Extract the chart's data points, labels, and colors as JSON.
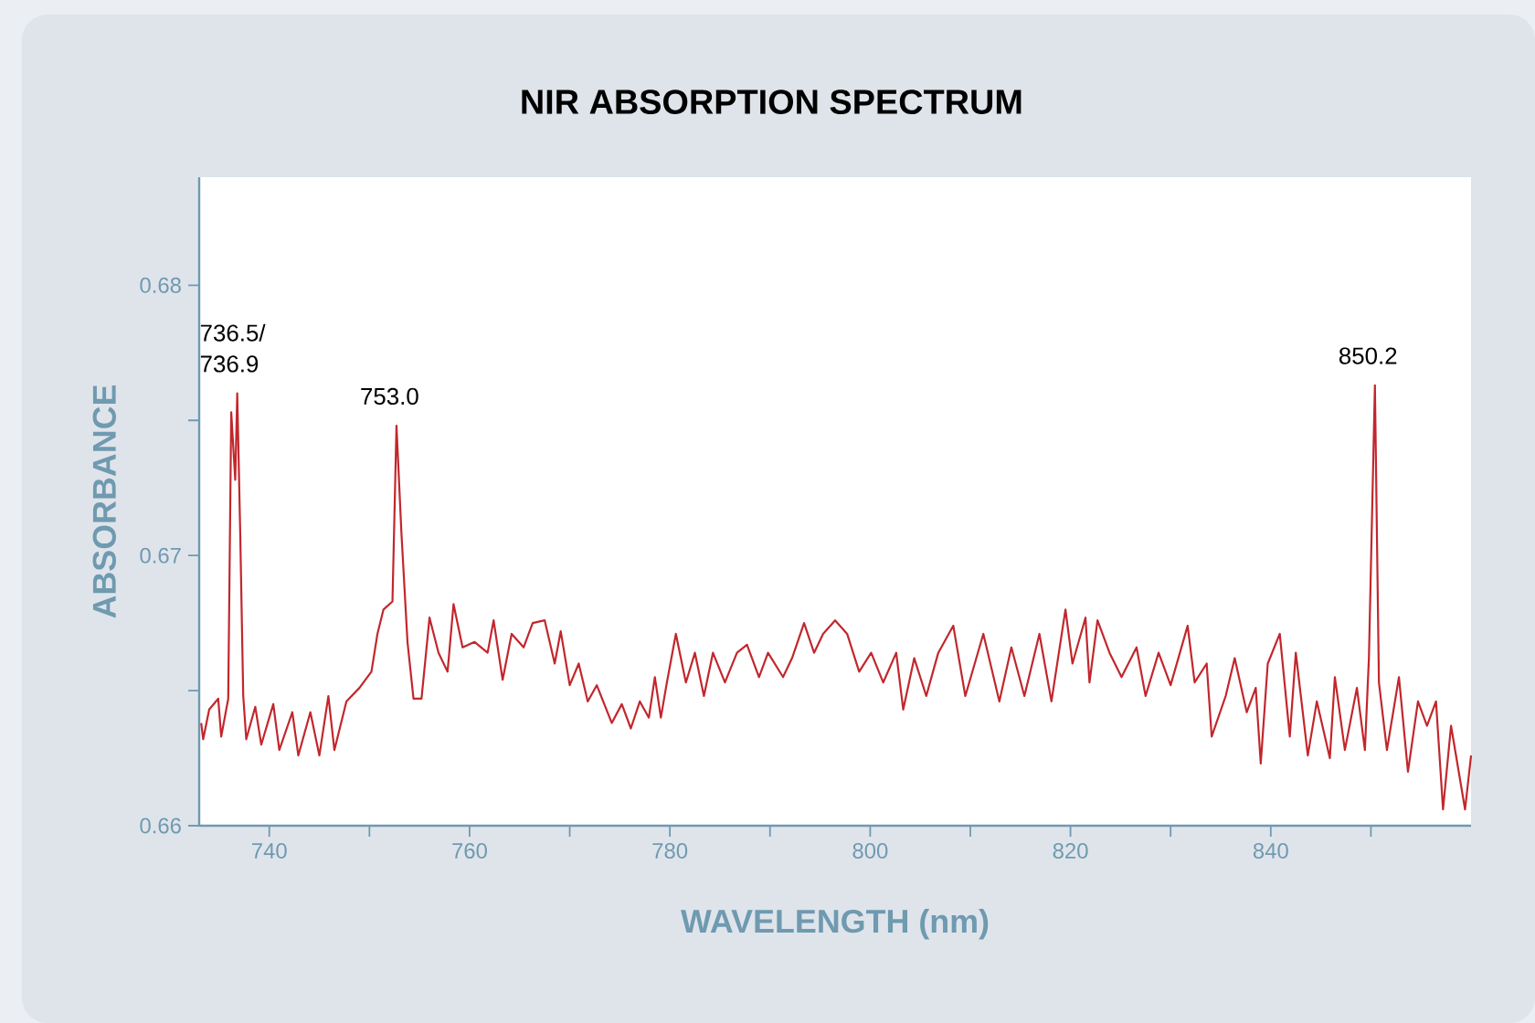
{
  "chart_data": {
    "type": "line",
    "title": "NIR ABSORPTION SPECTRUM",
    "xlabel": "WAVELENGTH (nm)",
    "ylabel": "ABSORBANCE",
    "color": "#c1272d",
    "xlim": [
      733,
      860
    ],
    "ylim": [
      0.66,
      0.684
    ],
    "xticks": [
      740,
      {
        "value": 750,
        "label": null
      },
      760,
      {
        "value": 770,
        "label": null
      },
      780,
      {
        "value": 790,
        "label": null
      },
      800,
      {
        "value": 810,
        "label": null
      },
      820,
      {
        "value": 830,
        "label": null
      },
      840,
      {
        "value": 850,
        "label": null
      }
    ],
    "yticks": [
      0.66,
      {
        "value": 0.665,
        "label": null
      },
      0.67,
      {
        "value": 0.675,
        "label": null
      },
      0.68
    ],
    "x": [
      733.2,
      733.4,
      734.0,
      734.9,
      735.2,
      735.9,
      736.2,
      736.6,
      736.8,
      737.1,
      737.4,
      737.7,
      738.6,
      739.2,
      740.4,
      741.0,
      742.3,
      742.9,
      744.1,
      745.0,
      745.9,
      746.5,
      747.7,
      749.0,
      750.2,
      750.8,
      751.4,
      752.3,
      752.7,
      753.2,
      753.8,
      754.4,
      755.2,
      756.0,
      756.9,
      757.8,
      758.4,
      759.3,
      760.5,
      761.8,
      762.4,
      763.3,
      764.2,
      765.4,
      766.3,
      767.5,
      768.5,
      769.1,
      770.0,
      770.9,
      771.8,
      772.7,
      774.2,
      775.2,
      776.1,
      777.0,
      777.9,
      778.5,
      779.1,
      779.7,
      780.6,
      781.6,
      782.5,
      783.4,
      784.3,
      785.5,
      786.7,
      787.7,
      788.9,
      789.8,
      791.3,
      792.2,
      793.4,
      794.4,
      795.3,
      796.5,
      797.7,
      798.9,
      800.1,
      801.3,
      802.6,
      803.3,
      804.4,
      805.6,
      806.8,
      808.3,
      809.5,
      811.3,
      812.9,
      814.1,
      815.4,
      816.9,
      818.1,
      819.5,
      820.2,
      821.5,
      821.9,
      822.7,
      823.9,
      825.1,
      826.6,
      827.5,
      828.8,
      830.0,
      831.7,
      832.4,
      833.6,
      834.1,
      835.5,
      836.4,
      837.6,
      838.5,
      839.0,
      839.7,
      840.9,
      841.9,
      842.5,
      843.7,
      844.6,
      845.9,
      846.4,
      847.4,
      848.6,
      849.4,
      849.8,
      850.4,
      850.8,
      851.6,
      852.8,
      853.7,
      854.7,
      855.6,
      856.5,
      857.2,
      858.0,
      859.4,
      860.0
    ],
    "values": [
      0.6638,
      0.6632,
      0.6643,
      0.6647,
      0.6633,
      0.6647,
      0.6753,
      0.6728,
      0.676,
      0.6708,
      0.6648,
      0.6632,
      0.6644,
      0.663,
      0.6645,
      0.6628,
      0.6642,
      0.6626,
      0.6642,
      0.6626,
      0.6648,
      0.6628,
      0.6646,
      0.6651,
      0.6657,
      0.6671,
      0.668,
      0.6683,
      0.6748,
      0.6708,
      0.6668,
      0.6647,
      0.6647,
      0.6677,
      0.6664,
      0.6657,
      0.6682,
      0.6666,
      0.6668,
      0.6664,
      0.6676,
      0.6654,
      0.6671,
      0.6666,
      0.6675,
      0.6676,
      0.666,
      0.6672,
      0.6652,
      0.666,
      0.6646,
      0.6652,
      0.6638,
      0.6645,
      0.6636,
      0.6646,
      0.664,
      0.6655,
      0.664,
      0.6653,
      0.6671,
      0.6653,
      0.6664,
      0.6648,
      0.6664,
      0.6653,
      0.6664,
      0.6667,
      0.6655,
      0.6664,
      0.6655,
      0.6662,
      0.6675,
      0.6664,
      0.6671,
      0.6676,
      0.6671,
      0.6657,
      0.6664,
      0.6653,
      0.6664,
      0.6643,
      0.6662,
      0.6648,
      0.6664,
      0.6674,
      0.6648,
      0.6671,
      0.6646,
      0.6666,
      0.6648,
      0.6671,
      0.6646,
      0.668,
      0.666,
      0.6677,
      0.6653,
      0.6676,
      0.6664,
      0.6655,
      0.6666,
      0.6648,
      0.6664,
      0.6652,
      0.6674,
      0.6653,
      0.666,
      0.6633,
      0.6648,
      0.6662,
      0.6642,
      0.6651,
      0.6623,
      0.666,
      0.6671,
      0.6633,
      0.6664,
      0.6626,
      0.6646,
      0.6625,
      0.6655,
      0.6628,
      0.6651,
      0.6628,
      0.6662,
      0.6763,
      0.6653,
      0.6628,
      0.6655,
      0.662,
      0.6646,
      0.6637,
      0.6646,
      0.6606,
      0.6637,
      0.6606,
      0.6626
    ],
    "annotations": [
      {
        "text": "736.5/ 736.9",
        "x": 736.7,
        "y": 0.676
      },
      {
        "text": "753.0",
        "x": 752.7,
        "y": 0.6748
      },
      {
        "text": "850.2",
        "x": 850.4,
        "y": 0.6763
      }
    ]
  }
}
